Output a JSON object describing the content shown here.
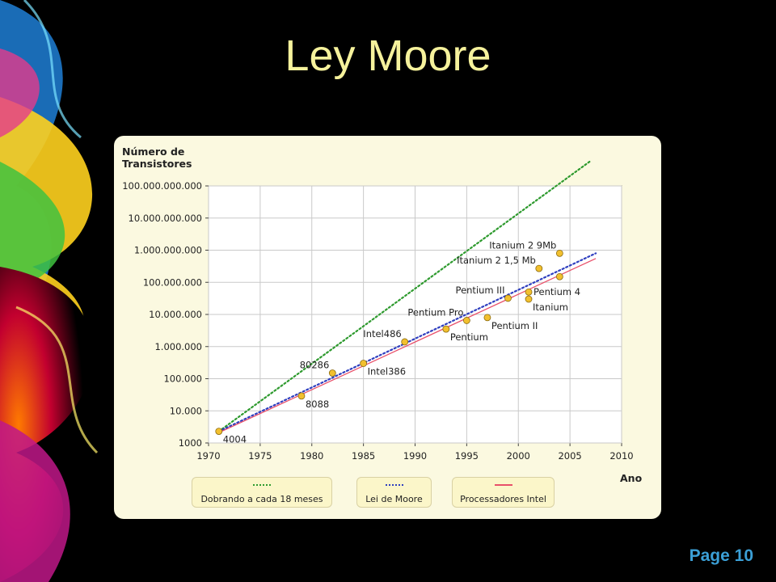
{
  "slide": {
    "title": "Ley Moore",
    "page_label": "Page 10"
  },
  "colors": {
    "title": "#f6f29c",
    "page_label": "#3b9fd6",
    "card": "#fbf9e0",
    "green": "#2e9a2e",
    "blue": "#2f3fbf",
    "red": "#e8506a",
    "marker": "#f2c02e"
  },
  "chart_data": {
    "type": "scatter",
    "ylabel_line1": "Número de",
    "ylabel_line2": "Transistores",
    "xlabel": "Ano",
    "x_range": [
      1970,
      2010
    ],
    "y_range": [
      1000,
      100000000000
    ],
    "y_scale": "log",
    "grid": true,
    "x_ticks": [
      "1970",
      "1975",
      "1980",
      "1985",
      "1990",
      "1995",
      "2000",
      "2005",
      "2010"
    ],
    "y_ticks": [
      "1000",
      "10.000",
      "100.000",
      "1.000.000",
      "10.000.000",
      "100.000.000",
      "1.000.000.000",
      "10.000.000.000",
      "100.000.000.000"
    ],
    "legend": [
      {
        "label": "Dobrando a cada 18 meses",
        "style": "dotted",
        "color": "green"
      },
      {
        "label": "Lei de Moore",
        "style": "dotted",
        "color": "blue"
      },
      {
        "label": "Processadores Intel",
        "style": "solid",
        "color": "red"
      }
    ],
    "trend_lines": [
      {
        "name": "Dobrando a cada 18 meses",
        "x": [
          1971,
          2007
        ],
        "y": [
          2300,
          600000000000
        ]
      },
      {
        "name": "Lei de Moore",
        "x": [
          1971,
          2007.5
        ],
        "y": [
          2300,
          800000000
        ]
      },
      {
        "name": "Processadores Intel",
        "x": [
          1971,
          2007.5
        ],
        "y": [
          2100,
          550000000
        ]
      }
    ],
    "points": [
      {
        "label": "4004",
        "x": 1971,
        "y": 2300,
        "anchor": "right-below"
      },
      {
        "label": "8088",
        "x": 1979,
        "y": 29000,
        "anchor": "right-below"
      },
      {
        "label": "80286",
        "x": 1982,
        "y": 150000,
        "anchor": "left-above"
      },
      {
        "label": "Intel386",
        "x": 1985,
        "y": 300000,
        "anchor": "right-below"
      },
      {
        "label": "Intel486",
        "x": 1989,
        "y": 1400000,
        "anchor": "left-above"
      },
      {
        "label": "Pentium",
        "x": 1993,
        "y": 3500000,
        "anchor": "right-below"
      },
      {
        "label": "Pentium Pro",
        "x": 1995,
        "y": 6500000,
        "anchor": "left-above"
      },
      {
        "label": "Pentium II",
        "x": 1997,
        "y": 8000000,
        "anchor": "right-below"
      },
      {
        "label": "Pentium III",
        "x": 1999,
        "y": 32000000,
        "anchor": "left-above"
      },
      {
        "label": "Pentium 4",
        "x": 2001,
        "y": 50000000,
        "anchor": "right"
      },
      {
        "label": "Itanium",
        "x": 2001,
        "y": 30000000,
        "anchor": "right-below"
      },
      {
        "label": "Itanium 2 1,5 Mb",
        "x": 2002,
        "y": 270000000,
        "anchor": "left-above"
      },
      {
        "label": "Itanium 2 9Mb",
        "x": 2004,
        "y": 800000000,
        "anchor": "left-above"
      },
      {
        "label": "",
        "x": 2004,
        "y": 150000000,
        "anchor": "none"
      }
    ]
  }
}
